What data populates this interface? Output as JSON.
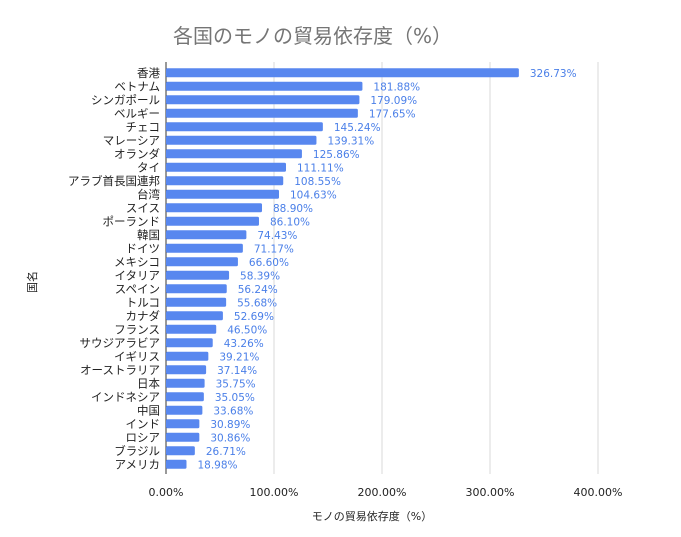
{
  "chart_data": {
    "type": "bar",
    "orientation": "horizontal",
    "title": "各国のモノの貿易依存度（%）",
    "xlabel": "モノの貿易依存度（%）",
    "ylabel": "国名",
    "xlim": [
      0,
      400
    ],
    "x_ticks": [
      0,
      100,
      200,
      300,
      400
    ],
    "x_tick_labels": [
      "0.00%",
      "100.00%",
      "200.00%",
      "300.00%",
      "400.00%"
    ],
    "grid": "vertical",
    "bar_color": "#5887ef",
    "value_label_color": "#4a7fe8",
    "categories": [
      "香港",
      "ベトナム",
      "シンガポール",
      "ベルギー",
      "チェコ",
      "マレーシア",
      "オランダ",
      "タイ",
      "アラブ首長国連邦",
      "台湾",
      "スイス",
      "ポーランド",
      "韓国",
      "ドイツ",
      "メキシコ",
      "イタリア",
      "スペイン",
      "トルコ",
      "カナダ",
      "フランス",
      "サウジアラビア",
      "イギリス",
      "オーストラリア",
      "日本",
      "インドネシア",
      "中国",
      "インド",
      "ロシア",
      "ブラジル",
      "アメリカ"
    ],
    "values": [
      326.73,
      181.88,
      179.09,
      177.65,
      145.24,
      139.31,
      125.86,
      111.11,
      108.55,
      104.63,
      88.9,
      86.1,
      74.43,
      71.17,
      66.6,
      58.39,
      56.24,
      55.68,
      52.69,
      46.5,
      43.26,
      39.21,
      37.14,
      35.75,
      35.05,
      33.68,
      30.89,
      30.86,
      26.71,
      18.98
    ],
    "value_labels": [
      "326.73%",
      "181.88%",
      "179.09%",
      "177.65%",
      "145.24%",
      "139.31%",
      "125.86%",
      "111.11%",
      "108.55%",
      "104.63%",
      "88.90%",
      "86.10%",
      "74.43%",
      "71.17%",
      "66.60%",
      "58.39%",
      "56.24%",
      "55.68%",
      "52.69%",
      "46.50%",
      "43.26%",
      "39.21%",
      "37.14%",
      "35.75%",
      "35.05%",
      "33.68%",
      "30.89%",
      "30.86%",
      "26.71%",
      "18.98%"
    ]
  }
}
